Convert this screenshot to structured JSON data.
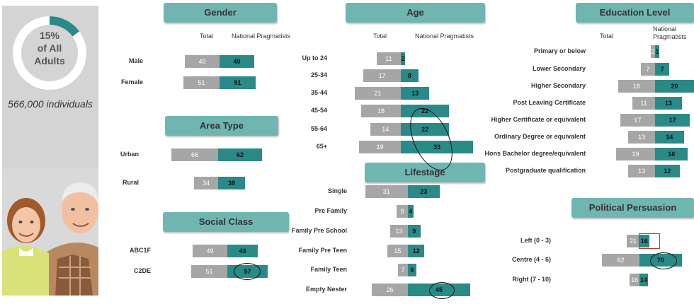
{
  "summary": {
    "percent": "15%",
    "of_label": "of All",
    "adults_label": "Adults",
    "individuals": "566,000  individuals",
    "donut_fraction": 0.15
  },
  "colors": {
    "total": "#a6a6a6",
    "np": "#2a8a87",
    "header": "#6fb6b1",
    "sidebar": "#d4d4d4"
  },
  "col_labels": {
    "total": "Total",
    "np": "National Pragmatists",
    "np_line1": "National",
    "np_line2": "Pragmatists"
  },
  "chart_data": [
    {
      "type": "bar",
      "title": "Gender",
      "categories": [
        "Male",
        "Female"
      ],
      "series": [
        {
          "name": "Total",
          "values": [
            49,
            51
          ]
        },
        {
          "name": "National Pragmatists",
          "values": [
            49,
            51
          ]
        }
      ]
    },
    {
      "type": "bar",
      "title": "Area Type",
      "categories": [
        "Urban",
        "Rural"
      ],
      "series": [
        {
          "name": "Total",
          "values": [
            66,
            34
          ]
        },
        {
          "name": "National Pragmatists",
          "values": [
            62,
            38
          ]
        }
      ]
    },
    {
      "type": "bar",
      "title": "Social Class",
      "categories": [
        "ABC1F",
        "C2DE"
      ],
      "series": [
        {
          "name": "Total",
          "values": [
            49,
            51
          ]
        },
        {
          "name": "National Pragmatists",
          "values": [
            43,
            57
          ]
        }
      ]
    },
    {
      "type": "bar",
      "title": "Age",
      "categories": [
        "Up to 24",
        "25-34",
        "35-44",
        "45-54",
        "55-64",
        "65+"
      ],
      "series": [
        {
          "name": "Total",
          "values": [
            11,
            17,
            21,
            18,
            14,
            19
          ]
        },
        {
          "name": "National Pragmatists",
          "values": [
            2,
            8,
            13,
            22,
            22,
            33
          ]
        }
      ]
    },
    {
      "type": "bar",
      "title": "Lifestage",
      "categories": [
        "Single",
        "Pre Family",
        "Family Pre School",
        "Family Pre Teen",
        "Family Teen",
        "Empty Nester"
      ],
      "series": [
        {
          "name": "Total",
          "values": [
            31,
            8,
            13,
            15,
            7,
            26
          ]
        },
        {
          "name": "National Pragmatists",
          "values": [
            23,
            4,
            9,
            12,
            6,
            45
          ]
        }
      ]
    },
    {
      "type": "bar",
      "title": "Education Level",
      "categories": [
        "Primary or below",
        "Lower Secondary",
        "Higher Secondary",
        "Post Leaving Certificate",
        "Higher Certificate or equivalent",
        "Ordinary Degree or equivalent",
        "Hons Bachelor degree/equivalent",
        "Postgraduate qualification"
      ],
      "series": [
        {
          "name": "Total",
          "values": [
            2,
            7,
            18,
            11,
            17,
            13,
            19,
            13
          ]
        },
        {
          "name": "National Pragmatists",
          "values": [
            1,
            7,
            20,
            13,
            17,
            14,
            16,
            12
          ]
        }
      ]
    },
    {
      "type": "bar",
      "title": "Political Persuasion",
      "categories": [
        "Left (0 - 3)",
        "Centre (4 - 6)",
        "Right (7 - 10)"
      ],
      "series": [
        {
          "name": "Total",
          "values": [
            21,
            62,
            16
          ]
        },
        {
          "name": "National Pragmatists",
          "values": [
            16,
            70,
            14
          ]
        }
      ]
    }
  ]
}
